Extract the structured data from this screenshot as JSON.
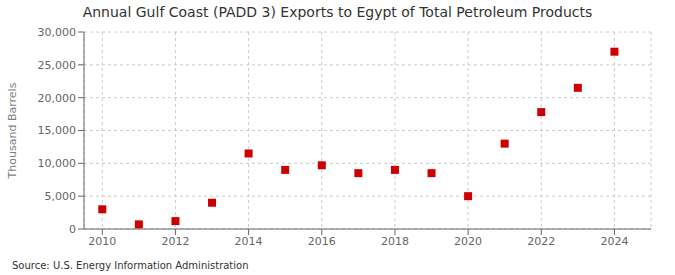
{
  "chart_data": {
    "type": "scatter",
    "title": "Annual Gulf Coast (PADD 3) Exports to Egypt of Total Petroleum Products",
    "y_label": "Thousand Barrels",
    "annotations": [
      "Source: U.S. Energy Information Administration"
    ],
    "x": [
      2010,
      2011,
      2012,
      2013,
      2014,
      2015,
      2016,
      2017,
      2018,
      2019,
      2020,
      2021,
      2022,
      2023,
      2024
    ],
    "values": [
      3000,
      700,
      1200,
      4000,
      11500,
      9000,
      9700,
      8500,
      9000,
      8500,
      5000,
      13000,
      17800,
      21500,
      27000
    ],
    "color": "#cc0000",
    "marker": "square",
    "xlim": [
      2009.5,
      2025.0
    ],
    "xticks": [
      2010,
      2012,
      2014,
      2016,
      2018,
      2020,
      2022,
      2024
    ],
    "ylim": [
      0,
      30000
    ],
    "yticks": [
      0,
      {
        "value": 5000,
        "label": "5,000"
      },
      {
        "value": 10000,
        "label": "10,000"
      },
      {
        "value": 15000,
        "label": "15,000"
      },
      {
        "value": 20000,
        "label": "20,000"
      },
      {
        "value": 25000,
        "label": "25,000"
      },
      {
        "value": 30000,
        "label": "30,000"
      }
    ],
    "grid": true
  }
}
